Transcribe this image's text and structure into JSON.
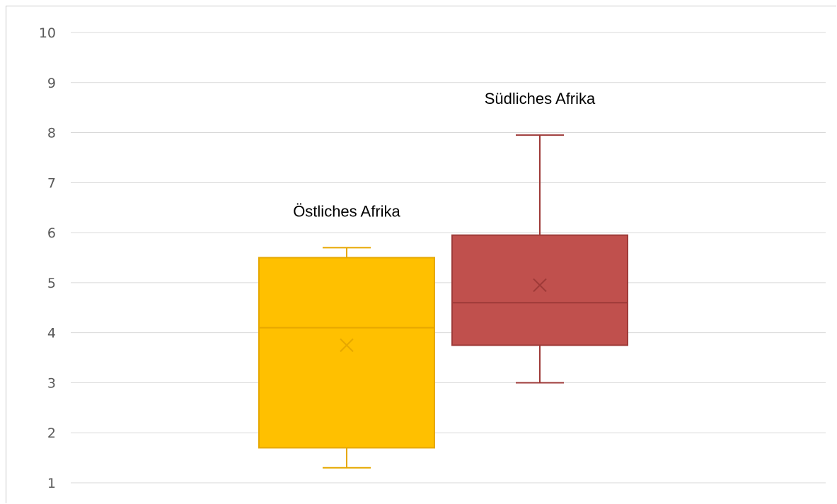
{
  "chart_data": {
    "type": "box",
    "title": "",
    "xlabel": "",
    "ylabel": "",
    "ylim": [
      1,
      10
    ],
    "yticks": [
      1,
      2,
      3,
      4,
      5,
      6,
      7,
      8,
      9,
      10
    ],
    "grid": true,
    "legend": "none",
    "series": [
      {
        "name": "Östliches Afrika",
        "color": "#ffc000",
        "line_color": "#e6a800",
        "whisker_low": 1.3,
        "q1": 1.7,
        "median": 4.1,
        "q3": 5.5,
        "whisker_high": 5.7,
        "mean": 3.75
      },
      {
        "name": "Südliches Afrika",
        "color": "#c0504d",
        "line_color": "#9e3a38",
        "whisker_low": 3.0,
        "q1": 3.75,
        "median": 4.6,
        "q3": 5.95,
        "whisker_high": 7.95,
        "mean": 4.95
      }
    ]
  }
}
